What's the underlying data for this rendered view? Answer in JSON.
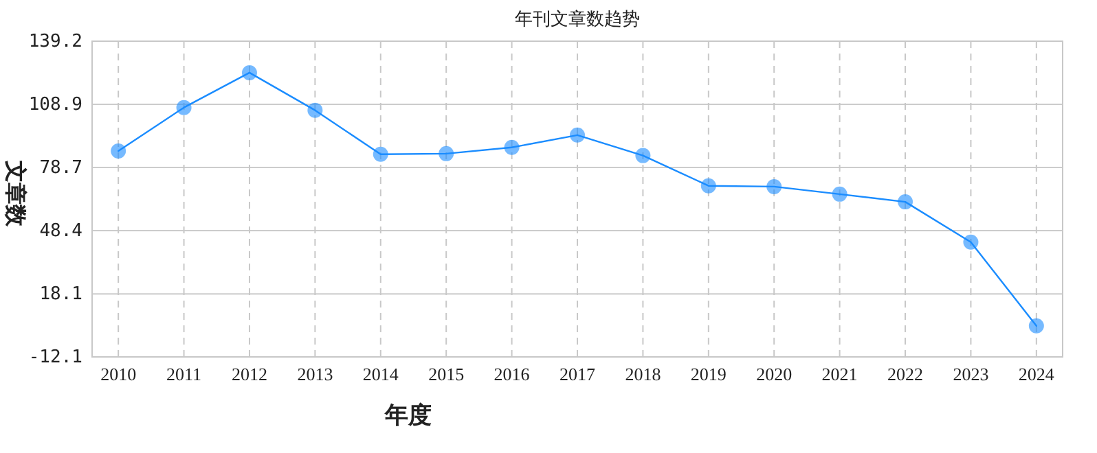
{
  "chart_data": {
    "type": "line",
    "title": "年刊文章数趋势",
    "xlabel": "年度",
    "ylabel": "文章数",
    "categories": [
      "2010",
      "2011",
      "2012",
      "2013",
      "2014",
      "2015",
      "2016",
      "2017",
      "2018",
      "2019",
      "2020",
      "2021",
      "2022",
      "2023",
      "2024"
    ],
    "series": [
      {
        "color": "#1a8cff",
        "values": [
          86.6,
          107.4,
          124.1,
          106.1,
          85.0,
          85.3,
          88.3,
          94.2,
          84.4,
          69.9,
          69.5,
          65.9,
          62.2,
          42.9,
          2.8
        ]
      }
    ],
    "ylim": [
      -12.1,
      139.2
    ],
    "yticks": [
      -12.1,
      18.1,
      48.4,
      78.7,
      108.9,
      139.2
    ],
    "grid": true,
    "marker": "circle",
    "line_style": "solid"
  }
}
